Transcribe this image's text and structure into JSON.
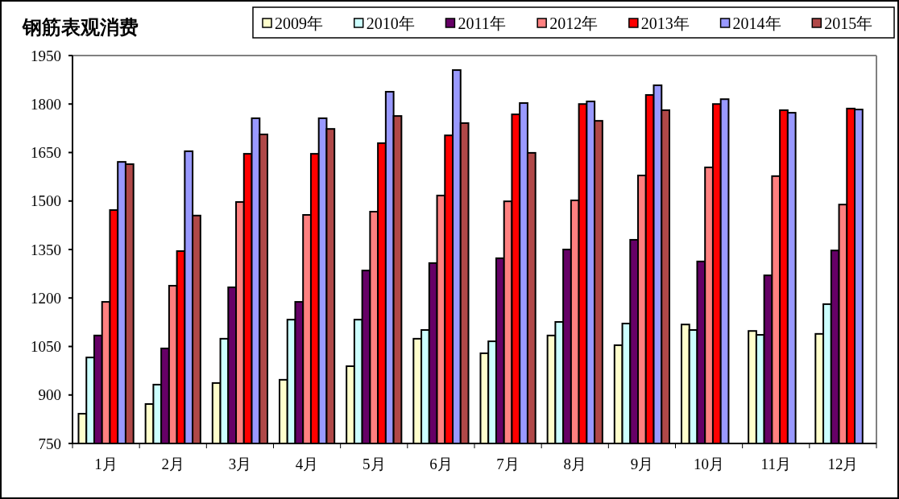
{
  "chart_data": {
    "type": "bar",
    "title": "钢筋表观消费",
    "categories": [
      "1月",
      "2月",
      "3月",
      "4月",
      "5月",
      "6月",
      "7月",
      "8月",
      "9月",
      "10月",
      "11月",
      "12月"
    ],
    "ylim": [
      750,
      1950
    ],
    "yticks": [
      750,
      900,
      1050,
      1200,
      1350,
      1500,
      1650,
      1800,
      1950
    ],
    "grid": false,
    "legend": "top right",
    "series": [
      {
        "name": "2009年",
        "color": "#ffffcc",
        "values": [
          842,
          872,
          937,
          947,
          989,
          1074,
          1029,
          1084,
          1054,
          1118,
          1098,
          1089
        ]
      },
      {
        "name": "2010年",
        "color": "#ccffff",
        "values": [
          1016,
          932,
          1074,
          1133,
          1133,
          1101,
          1066,
          1126,
          1121,
          1101,
          1086,
          1181
        ]
      },
      {
        "name": "2011年",
        "color": "#660066",
        "values": [
          1084,
          1044,
          1233,
          1188,
          1285,
          1308,
          1323,
          1350,
          1380,
          1313,
          1270,
          1347
        ]
      },
      {
        "name": "2012年",
        "color": "#ff8080",
        "values": [
          1188,
          1238,
          1497,
          1457,
          1467,
          1517,
          1499,
          1502,
          1579,
          1604,
          1577,
          1489
        ]
      },
      {
        "name": "2013年",
        "color": "#ff0000",
        "values": [
          1472,
          1345,
          1646,
          1646,
          1679,
          1703,
          1768,
          1800,
          1828,
          1800,
          1781,
          1786
        ]
      },
      {
        "name": "2014年",
        "color": "#9999ff",
        "values": [
          1621,
          1654,
          1756,
          1756,
          1838,
          1905,
          1803,
          1808,
          1858,
          1815,
          1773,
          1783
        ]
      },
      {
        "name": "2015年",
        "color": "#b04848",
        "values": [
          1614,
          1455,
          1706,
          1723,
          1763,
          1741,
          1649,
          1748,
          1781,
          null,
          null,
          null
        ]
      }
    ]
  }
}
